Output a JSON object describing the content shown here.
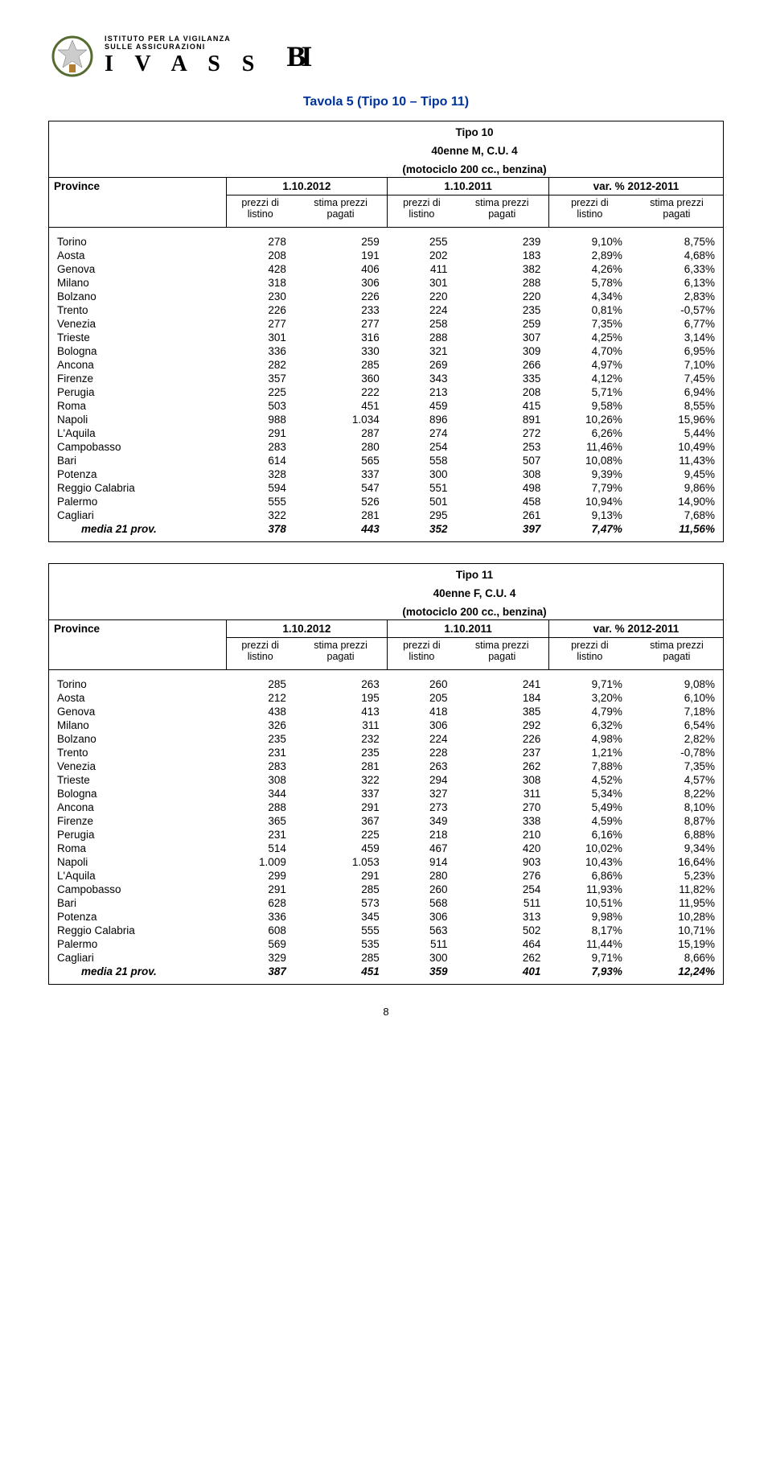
{
  "header": {
    "institute_line1": "ISTITUTO PER LA VIGILANZA",
    "institute_line2": "SULLE ASSICURAZIONI",
    "brand": "I V A S S",
    "bi_mark": "BI"
  },
  "title": "Tavola 5 (Tipo 10 – Tipo 11)",
  "page_number": "8",
  "col_labels": {
    "province": "Province",
    "date_2012": "1.10.2012",
    "date_2011": "1.10.2011",
    "var": "var. % 2012-2011",
    "prezzi": "prezzi di listino",
    "stima": "stima prezzi pagati"
  },
  "tables": [
    {
      "chart_title_lines": [
        "Tipo 10",
        "40enne M, C.U. 4",
        "(motociclo 200 cc., benzina)"
      ],
      "rows": [
        [
          "Torino",
          "278",
          "259",
          "255",
          "239",
          "9,10%",
          "8,75%"
        ],
        [
          "Aosta",
          "208",
          "191",
          "202",
          "183",
          "2,89%",
          "4,68%"
        ],
        [
          "Genova",
          "428",
          "406",
          "411",
          "382",
          "4,26%",
          "6,33%"
        ],
        [
          "Milano",
          "318",
          "306",
          "301",
          "288",
          "5,78%",
          "6,13%"
        ],
        [
          "Bolzano",
          "230",
          "226",
          "220",
          "220",
          "4,34%",
          "2,83%"
        ],
        [
          "Trento",
          "226",
          "233",
          "224",
          "235",
          "0,81%",
          "-0,57%"
        ],
        [
          "Venezia",
          "277",
          "277",
          "258",
          "259",
          "7,35%",
          "6,77%"
        ],
        [
          "Trieste",
          "301",
          "316",
          "288",
          "307",
          "4,25%",
          "3,14%"
        ],
        [
          "Bologna",
          "336",
          "330",
          "321",
          "309",
          "4,70%",
          "6,95%"
        ],
        [
          "Ancona",
          "282",
          "285",
          "269",
          "266",
          "4,97%",
          "7,10%"
        ],
        [
          "Firenze",
          "357",
          "360",
          "343",
          "335",
          "4,12%",
          "7,45%"
        ],
        [
          "Perugia",
          "225",
          "222",
          "213",
          "208",
          "5,71%",
          "6,94%"
        ],
        [
          "Roma",
          "503",
          "451",
          "459",
          "415",
          "9,58%",
          "8,55%"
        ],
        [
          "Napoli",
          "988",
          "1.034",
          "896",
          "891",
          "10,26%",
          "15,96%"
        ],
        [
          "L'Aquila",
          "291",
          "287",
          "274",
          "272",
          "6,26%",
          "5,44%"
        ],
        [
          "Campobasso",
          "283",
          "280",
          "254",
          "253",
          "11,46%",
          "10,49%"
        ],
        [
          "Bari",
          "614",
          "565",
          "558",
          "507",
          "10,08%",
          "11,43%"
        ],
        [
          "Potenza",
          "328",
          "337",
          "300",
          "308",
          "9,39%",
          "9,45%"
        ],
        [
          "Reggio Calabria",
          "594",
          "547",
          "551",
          "498",
          "7,79%",
          "9,86%"
        ],
        [
          "Palermo",
          "555",
          "526",
          "501",
          "458",
          "10,94%",
          "14,90%"
        ],
        [
          "Cagliari",
          "322",
          "281",
          "295",
          "261",
          "9,13%",
          "7,68%"
        ]
      ],
      "media": [
        "media 21 prov.",
        "378",
        "443",
        "352",
        "397",
        "7,47%",
        "11,56%"
      ]
    },
    {
      "chart_title_lines": [
        "Tipo 11",
        "40enne F, C.U. 4",
        "(motociclo 200 cc., benzina)"
      ],
      "rows": [
        [
          "Torino",
          "285",
          "263",
          "260",
          "241",
          "9,71%",
          "9,08%"
        ],
        [
          "Aosta",
          "212",
          "195",
          "205",
          "184",
          "3,20%",
          "6,10%"
        ],
        [
          "Genova",
          "438",
          "413",
          "418",
          "385",
          "4,79%",
          "7,18%"
        ],
        [
          "Milano",
          "326",
          "311",
          "306",
          "292",
          "6,32%",
          "6,54%"
        ],
        [
          "Bolzano",
          "235",
          "232",
          "224",
          "226",
          "4,98%",
          "2,82%"
        ],
        [
          "Trento",
          "231",
          "235",
          "228",
          "237",
          "1,21%",
          "-0,78%"
        ],
        [
          "Venezia",
          "283",
          "281",
          "263",
          "262",
          "7,88%",
          "7,35%"
        ],
        [
          "Trieste",
          "308",
          "322",
          "294",
          "308",
          "4,52%",
          "4,57%"
        ],
        [
          "Bologna",
          "344",
          "337",
          "327",
          "311",
          "5,34%",
          "8,22%"
        ],
        [
          "Ancona",
          "288",
          "291",
          "273",
          "270",
          "5,49%",
          "8,10%"
        ],
        [
          "Firenze",
          "365",
          "367",
          "349",
          "338",
          "4,59%",
          "8,87%"
        ],
        [
          "Perugia",
          "231",
          "225",
          "218",
          "210",
          "6,16%",
          "6,88%"
        ],
        [
          "Roma",
          "514",
          "459",
          "467",
          "420",
          "10,02%",
          "9,34%"
        ],
        [
          "Napoli",
          "1.009",
          "1.053",
          "914",
          "903",
          "10,43%",
          "16,64%"
        ],
        [
          "L'Aquila",
          "299",
          "291",
          "280",
          "276",
          "6,86%",
          "5,23%"
        ],
        [
          "Campobasso",
          "291",
          "285",
          "260",
          "254",
          "11,93%",
          "11,82%"
        ],
        [
          "Bari",
          "628",
          "573",
          "568",
          "511",
          "10,51%",
          "11,95%"
        ],
        [
          "Potenza",
          "336",
          "345",
          "306",
          "313",
          "9,98%",
          "10,28%"
        ],
        [
          "Reggio Calabria",
          "608",
          "555",
          "563",
          "502",
          "8,17%",
          "10,71%"
        ],
        [
          "Palermo",
          "569",
          "535",
          "511",
          "464",
          "11,44%",
          "15,19%"
        ],
        [
          "Cagliari",
          "329",
          "285",
          "300",
          "262",
          "9,71%",
          "8,66%"
        ]
      ],
      "media": [
        "media 21 prov.",
        "387",
        "451",
        "359",
        "401",
        "7,93%",
        "12,24%"
      ]
    }
  ]
}
